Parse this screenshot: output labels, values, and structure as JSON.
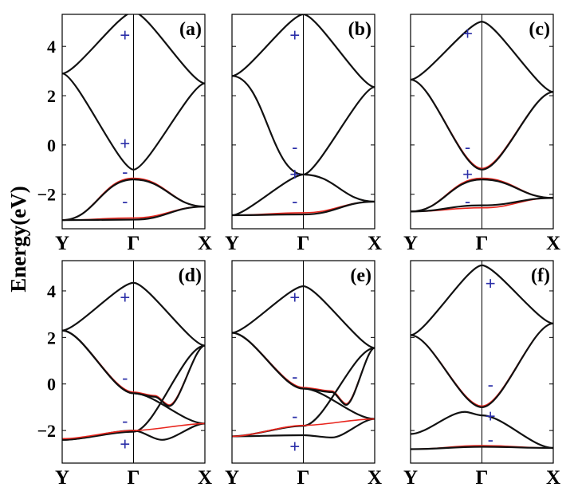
{
  "figure": {
    "ylabel": "Energy(eV)"
  },
  "colors": {
    "band": "#111111",
    "highlight": "#e8241c",
    "symmetry": "#2b2fa8",
    "frame": "#000000"
  },
  "chart_data": [
    {
      "type": "line",
      "panel_label": "(a)",
      "xticks": [
        "Y",
        "Γ",
        "X"
      ],
      "ylim": [
        -3.4,
        5.3
      ],
      "yticks": [
        -2,
        0,
        2,
        4
      ],
      "ytick_labels": [
        "−2",
        "0",
        "2",
        "4"
      ],
      "series": [
        {
          "color": "#111111",
          "x": [
            0,
            0.5,
            1
          ],
          "y": [
            2.9,
            -1.0,
            2.5
          ],
          "k": 0.2
        },
        {
          "color": "#111111",
          "x": [
            0,
            0.5,
            1
          ],
          "y": [
            2.9,
            5.4,
            2.5
          ],
          "k": 0.2
        },
        {
          "color": "#e8241c",
          "x": [
            0,
            0.5,
            1
          ],
          "y": [
            -3.05,
            -1.35,
            -2.5
          ],
          "k": 0.45
        },
        {
          "color": "#111111",
          "x": [
            0,
            0.5,
            1
          ],
          "y": [
            -3.05,
            -1.4,
            -2.5
          ],
          "k": 0.45
        },
        {
          "color": "#e8241c",
          "x": [
            0,
            0.5,
            1
          ],
          "y": [
            -3.05,
            -2.96,
            -2.5
          ],
          "k": 0.45
        },
        {
          "color": "#111111",
          "x": [
            0,
            0.5,
            1
          ],
          "y": [
            -3.05,
            -3.03,
            -2.5
          ],
          "k": 0.45
        }
      ],
      "symmetry_labels": [
        {
          "text": "+",
          "x": 0.44,
          "y": 4.45
        },
        {
          "text": "+",
          "x": 0.44,
          "y": 0.05
        },
        {
          "text": "-",
          "x": 0.44,
          "y": -1.1
        },
        {
          "text": "-",
          "x": 0.44,
          "y": -2.3
        }
      ]
    },
    {
      "type": "line",
      "panel_label": "(b)",
      "xticks": [
        "Y",
        "Γ",
        "X"
      ],
      "ylim": [
        -3.4,
        5.3
      ],
      "series": [
        {
          "color": "#111111",
          "x": [
            0,
            0.5,
            1
          ],
          "y": [
            2.8,
            5.3,
            2.35
          ],
          "k": 0.2
        },
        {
          "color": "#e8241c",
          "x": [
            0,
            0.5,
            1
          ],
          "y": [
            2.8,
            -1.2,
            -2.3
          ],
          "k": 0.45
        },
        {
          "color": "#111111",
          "x": [
            0,
            0.5,
            1
          ],
          "y": [
            2.8,
            -1.2,
            -2.3
          ],
          "k": 0.45
        },
        {
          "color": "#111111",
          "x": [
            0,
            0.5,
            1
          ],
          "y": [
            -2.85,
            -1.2,
            2.35
          ],
          "k": 0.2
        },
        {
          "color": "#e8241c",
          "x": [
            0,
            0.5,
            1
          ],
          "y": [
            -2.85,
            -2.75,
            -2.3
          ],
          "k": 0.45
        },
        {
          "color": "#111111",
          "x": [
            0,
            0.5,
            1
          ],
          "y": [
            -2.85,
            -2.82,
            -2.3
          ],
          "k": 0.45
        }
      ],
      "symmetry_labels": [
        {
          "text": "+",
          "x": 0.44,
          "y": 4.45
        },
        {
          "text": "-",
          "x": 0.44,
          "y": -0.1
        },
        {
          "text": "+",
          "x": 0.44,
          "y": -1.2
        },
        {
          "text": "-",
          "x": 0.44,
          "y": -2.3
        }
      ]
    },
    {
      "type": "line",
      "panel_label": "(c)",
      "xticks": [
        "Y",
        "Γ",
        "X"
      ],
      "ylim": [
        -3.4,
        5.3
      ],
      "series": [
        {
          "color": "#111111",
          "x": [
            0,
            0.5,
            1
          ],
          "y": [
            2.65,
            5.0,
            2.15
          ],
          "k": 0.2
        },
        {
          "color": "#e8241c",
          "x": [
            0,
            0.5,
            1
          ],
          "y": [
            2.65,
            -0.95,
            2.15
          ],
          "k": 0.3
        },
        {
          "color": "#111111",
          "x": [
            0,
            0.5,
            1
          ],
          "y": [
            2.65,
            -1.0,
            2.15
          ],
          "k": 0.3
        },
        {
          "color": "#e8241c",
          "x": [
            0,
            0.5,
            1
          ],
          "y": [
            -2.7,
            -1.35,
            -2.15
          ],
          "k": 0.45
        },
        {
          "color": "#111111",
          "x": [
            0,
            0.5,
            1
          ],
          "y": [
            -2.7,
            -1.4,
            -2.15
          ],
          "k": 0.45
        },
        {
          "color": "#e8241c",
          "x": [
            0,
            0.5,
            1
          ],
          "y": [
            -2.7,
            -2.55,
            -2.15
          ],
          "k": 0.45
        },
        {
          "color": "#111111",
          "x": [
            0,
            0.5,
            1
          ],
          "y": [
            -2.7,
            -2.45,
            -2.15
          ],
          "k": 0.45
        }
      ],
      "symmetry_labels": [
        {
          "text": "+",
          "x": 0.4,
          "y": 4.5
        },
        {
          "text": "-",
          "x": 0.4,
          "y": -0.1
        },
        {
          "text": "+",
          "x": 0.4,
          "y": -1.2
        },
        {
          "text": "-",
          "x": 0.4,
          "y": -2.3
        }
      ]
    },
    {
      "type": "line",
      "panel_label": "(d)",
      "xticks": [
        "Y",
        "Γ",
        "X"
      ],
      "ylim": [
        -3.4,
        5.3
      ],
      "series": [
        {
          "color": "#111111",
          "x": [
            0,
            0.5,
            1
          ],
          "y": [
            2.3,
            4.35,
            1.65
          ],
          "k": 0.2
        },
        {
          "color": "#111111",
          "x": [
            0,
            0.5,
            1
          ],
          "y": [
            2.3,
            -0.4,
            -1.7
          ],
          "k": 0.3
        },
        {
          "color": "#e8241c",
          "x": [
            0,
            0.5,
            0.65,
            0.75,
            1
          ],
          "y": [
            2.3,
            -0.35,
            -0.5,
            -0.9,
            1.65
          ],
          "k": 0.3
        },
        {
          "color": "#111111",
          "x": [
            0,
            0.5,
            0.65,
            0.75,
            1
          ],
          "y": [
            2.3,
            -0.4,
            -0.55,
            -0.95,
            1.65
          ],
          "k": 0.3
        },
        {
          "color": "#111111",
          "x": [
            0,
            0.5,
            1
          ],
          "y": [
            -2.4,
            -2.05,
            1.65
          ],
          "k": 0.3
        },
        {
          "color": "#111111",
          "x": [
            0,
            0.5,
            0.7,
            1
          ],
          "y": [
            -2.4,
            -2.0,
            -2.4,
            -1.7
          ],
          "k": 0.3
        },
        {
          "color": "#e8241c",
          "x": [
            0,
            0.5,
            1
          ],
          "y": [
            -2.35,
            -2.0,
            -1.7
          ],
          "k": 0.3
        }
      ],
      "symmetry_labels": [
        {
          "text": "+",
          "x": 0.44,
          "y": 3.7
        },
        {
          "text": "-",
          "x": 0.44,
          "y": 0.25
        },
        {
          "text": "-",
          "x": 0.44,
          "y": -1.6
        },
        {
          "text": "+",
          "x": 0.44,
          "y": -2.6
        }
      ]
    },
    {
      "type": "line",
      "panel_label": "(e)",
      "xticks": [
        "Y",
        "Γ",
        "X"
      ],
      "ylim": [
        -3.4,
        5.3
      ],
      "series": [
        {
          "color": "#111111",
          "x": [
            0,
            0.5,
            1
          ],
          "y": [
            2.2,
            4.2,
            1.55
          ],
          "k": 0.2
        },
        {
          "color": "#111111",
          "x": [
            0,
            0.5,
            1
          ],
          "y": [
            2.2,
            -0.2,
            -1.5
          ],
          "k": 0.3
        },
        {
          "color": "#e8241c",
          "x": [
            0,
            0.5,
            0.7,
            0.8,
            1
          ],
          "y": [
            2.2,
            -0.15,
            -0.3,
            -0.85,
            1.55
          ],
          "k": 0.3
        },
        {
          "color": "#111111",
          "x": [
            0,
            0.5,
            0.7,
            0.8,
            1
          ],
          "y": [
            2.2,
            -0.2,
            -0.35,
            -0.9,
            1.55
          ],
          "k": 0.3
        },
        {
          "color": "#111111",
          "x": [
            0,
            0.5,
            1
          ],
          "y": [
            -2.25,
            -1.8,
            1.55
          ],
          "k": 0.3
        },
        {
          "color": "#111111",
          "x": [
            0,
            0.5,
            0.7,
            1
          ],
          "y": [
            -2.25,
            -2.2,
            -2.3,
            -1.5
          ],
          "k": 0.3
        },
        {
          "color": "#e8241c",
          "x": [
            0,
            0.5,
            1
          ],
          "y": [
            -2.25,
            -1.78,
            -1.5
          ],
          "k": 0.3
        }
      ],
      "symmetry_labels": [
        {
          "text": "+",
          "x": 0.44,
          "y": 3.7
        },
        {
          "text": "-",
          "x": 0.44,
          "y": 0.3
        },
        {
          "text": "-",
          "x": 0.44,
          "y": -1.4
        },
        {
          "text": "+",
          "x": 0.44,
          "y": -2.7
        }
      ]
    },
    {
      "type": "line",
      "panel_label": "(f)",
      "xticks": [
        "Y",
        "Γ",
        "X"
      ],
      "ylim": [
        -3.4,
        5.3
      ],
      "series": [
        {
          "color": "#111111",
          "x": [
            0,
            0.5,
            1
          ],
          "y": [
            2.1,
            5.1,
            2.6
          ],
          "k": 0.2
        },
        {
          "color": "#e8241c",
          "x": [
            0,
            0.5,
            1
          ],
          "y": [
            2.1,
            -0.95,
            2.6
          ],
          "k": 0.3
        },
        {
          "color": "#111111",
          "x": [
            0,
            0.5,
            1
          ],
          "y": [
            2.1,
            -1.0,
            2.6
          ],
          "k": 0.3
        },
        {
          "color": "#111111",
          "x": [
            0,
            0.38,
            0.5,
            1
          ],
          "y": [
            -2.15,
            -1.2,
            -1.35,
            -2.75
          ],
          "k": 0.3
        },
        {
          "color": "#e8241c",
          "x": [
            0,
            0.5,
            1
          ],
          "y": [
            -2.8,
            -2.65,
            -2.75
          ],
          "k": 0.45
        },
        {
          "color": "#111111",
          "x": [
            0,
            0.5,
            1
          ],
          "y": [
            -2.8,
            -2.7,
            -2.75
          ],
          "k": 0.45
        }
      ],
      "symmetry_labels": [
        {
          "text": "+",
          "x": 0.56,
          "y": 4.3
        },
        {
          "text": "-",
          "x": 0.56,
          "y": -0.05
        },
        {
          "text": "+",
          "x": 0.56,
          "y": -1.4
        },
        {
          "text": "-",
          "x": 0.56,
          "y": -2.4
        }
      ]
    }
  ]
}
